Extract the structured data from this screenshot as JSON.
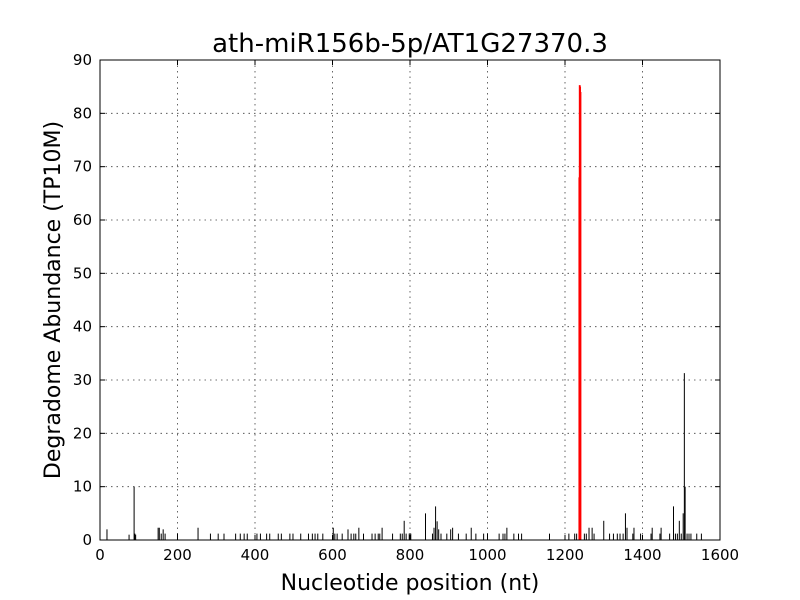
{
  "chart_data": {
    "type": "bar",
    "title": "ath-miR156b-5p/AT1G27370.3",
    "xlabel": "Nucleotide position (nt)",
    "ylabel": "Degradome Abundance (TP10M)",
    "xlim": [
      0,
      1600
    ],
    "ylim": [
      0,
      90
    ],
    "xticks": [
      0,
      200,
      400,
      600,
      800,
      1000,
      1200,
      1400,
      1600
    ],
    "yticks": [
      0,
      10,
      20,
      30,
      40,
      50,
      60,
      70,
      80,
      90
    ],
    "grid": true,
    "colors": {
      "background": "#000000",
      "target": "#ff0000"
    },
    "series": [
      {
        "color": "#000000",
        "x": [
          18,
          75,
          88,
          90,
          92,
          150,
          153,
          158,
          163,
          168,
          200,
          253,
          285,
          305,
          320,
          350,
          362,
          372,
          380,
          405,
          414,
          430,
          438,
          460,
          468,
          490,
          498,
          518,
          538,
          548,
          555,
          562,
          575,
          602,
          606,
          612,
          625,
          640,
          648,
          655,
          660,
          668,
          680,
          702,
          710,
          718,
          722,
          728,
          755,
          775,
          780,
          785,
          790,
          798,
          802,
          840,
          858,
          862,
          866,
          870,
          874,
          880,
          895,
          905,
          910,
          925,
          945,
          958,
          970,
          990,
          1000,
          1030,
          1040,
          1045,
          1050,
          1068,
          1080,
          1088,
          1160,
          1210,
          1225,
          1230,
          1250,
          1255,
          1262,
          1270,
          1275,
          1300,
          1315,
          1325,
          1335,
          1342,
          1350,
          1356,
          1360,
          1375,
          1378,
          1395,
          1422,
          1425,
          1445,
          1448,
          1470,
          1480,
          1485,
          1490,
          1495,
          1500,
          1505,
          1508,
          1510,
          1515,
          1520,
          1525,
          1540,
          1552
        ],
        "values": [
          2,
          1,
          10,
          1.2,
          1,
          2.3,
          2.3,
          1.2,
          2,
          1.2,
          1.2,
          2.3,
          1.2,
          1.2,
          1.2,
          1.2,
          1.2,
          1.2,
          1.2,
          1.2,
          1.2,
          1.2,
          1.2,
          1.2,
          1.2,
          1.2,
          1.2,
          1.2,
          1.2,
          1.2,
          1.2,
          1.2,
          1.2,
          2.3,
          1.2,
          1.2,
          1.2,
          2,
          1.2,
          1.2,
          1.2,
          2.3,
          1.2,
          1.2,
          1.2,
          1.2,
          1.2,
          2.3,
          1.2,
          1.2,
          1.2,
          3.6,
          1.2,
          1.2,
          1.2,
          5,
          1.2,
          2.3,
          6.3,
          3.5,
          2,
          1.2,
          1.2,
          2,
          2.3,
          1.2,
          1.2,
          2.3,
          1.2,
          1.2,
          1.2,
          1.2,
          1.2,
          1.2,
          2.3,
          1.2,
          1.2,
          1.2,
          1.2,
          1.2,
          1.2,
          1.2,
          1.2,
          1.2,
          2.3,
          2.3,
          1.2,
          3.6,
          1.2,
          1.2,
          1.2,
          1.2,
          1.2,
          5,
          2.3,
          1.2,
          2.3,
          1.2,
          1.2,
          2.3,
          1.2,
          2.3,
          1.2,
          6.3,
          1.2,
          1.2,
          3.6,
          1.2,
          5,
          31.3,
          10,
          1.2,
          1.2,
          1.2,
          1.2,
          1.2
        ]
      },
      {
        "color": "#ff0000",
        "x": [
          1237,
          1238,
          1239,
          1240
        ],
        "values": [
          68,
          85.3,
          85,
          84
        ]
      }
    ]
  }
}
